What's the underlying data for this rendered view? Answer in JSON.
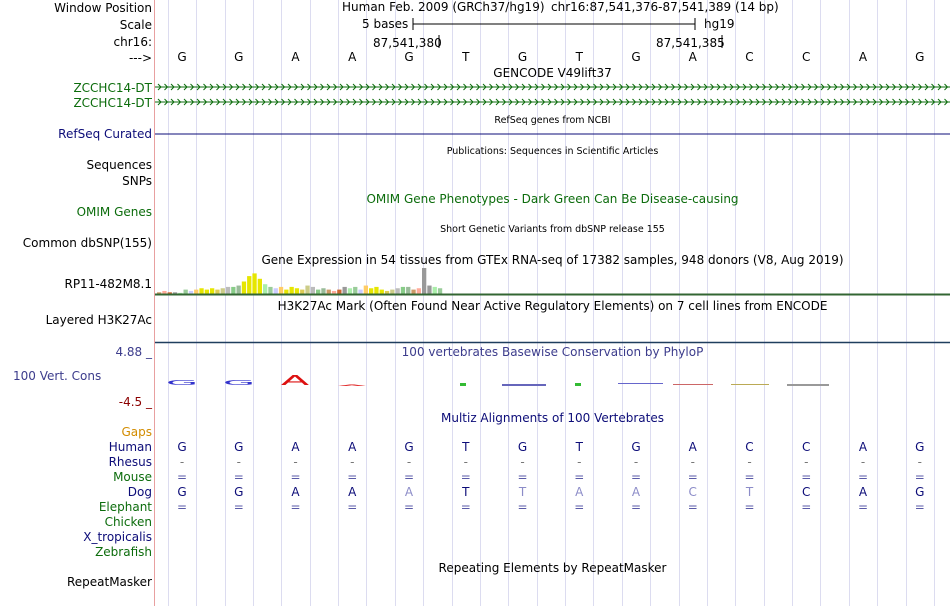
{
  "header": {
    "window_position_label": "Window Position",
    "scale_label": "Scale",
    "chr_label": "chr16:",
    "arrow_label": "--->",
    "assembly": "Human Feb. 2009 (GRCh37/hg19)",
    "position": "chr16:87,541,376-87,541,389 (14 bp)",
    "scale_text": "5 bases",
    "genome": "hg19",
    "coord_1": "87,541,380",
    "coord_2": "87,541,385"
  },
  "sequence": [
    "G",
    "G",
    "A",
    "A",
    "G",
    "T",
    "G",
    "T",
    "G",
    "A",
    "C",
    "C",
    "A",
    "G"
  ],
  "tracks": {
    "gencode_title": "GENCODE V49lift37",
    "gencode_genes": [
      "ZCCHC14-DT",
      "ZCCHC14-DT"
    ],
    "refseq_title": "RefSeq genes from NCBI",
    "refseq_label": "RefSeq Curated",
    "pub_title": "Publications: Sequences in Scientific Articles",
    "sequences_label": "Sequences",
    "snps_label": "SNPs",
    "omim_title": "OMIM Gene Phenotypes - Dark Green Can Be Disease-causing",
    "omim_label": "OMIM Genes",
    "dbsnp_title": "Short Genetic Variants from dbSNP release 155",
    "dbsnp_label": "Common dbSNP(155)",
    "gtex_title": "Gene Expression in 54 tissues from GTEx RNA-seq of 17382 samples, 948 donors (V8, Aug 2019)",
    "gtex_label": "RP11-482M8.1",
    "h3k27_title": "H3K27Ac Mark (Often Found Near Active Regulatory Elements) on 7 cell lines from ENCODE",
    "h3k27_label": "Layered H3K27Ac",
    "cons_title": "100 vertebrates Basewise Conservation by PhyloP",
    "cons_label": "100 Vert. Cons",
    "cons_max": "4.88 _",
    "cons_min": "-4.5 _",
    "multiz_title": "Multiz Alignments of 100 Vertebrates",
    "gaps_label": "Gaps",
    "repeat_title": "Repeating Elements by RepeatMasker",
    "repeat_label": "RepeatMasker"
  },
  "gtex_values": [
    0.1,
    0.15,
    0.1,
    0.1,
    0.08,
    0.2,
    0.15,
    0.2,
    0.25,
    0.2,
    0.25,
    0.2,
    0.25,
    0.3,
    0.3,
    0.35,
    0.5,
    0.7,
    0.8,
    0.6,
    0.4,
    0.3,
    0.25,
    0.3,
    0.2,
    0.3,
    0.25,
    0.2,
    0.35,
    0.3,
    0.2,
    0.25,
    0.2,
    0.15,
    0.2,
    0.3,
    0.25,
    0.3,
    0.2,
    0.35,
    0.25,
    0.3,
    0.2,
    0.15,
    0.2,
    0.25,
    0.3,
    0.3,
    0.2,
    0.25,
    1.0,
    0.35,
    0.3,
    0.25
  ],
  "colors": {
    "gencode": "#0c6c0c",
    "refseq": "#0c0c78",
    "cons": "#3c3c8c",
    "cons_max": "#3c3c8c",
    "cons_min": "#8b0000",
    "gaps": "#d28c00",
    "species_dark": "#0c0c78",
    "species_green": "#0c6c0c",
    "h3k27_line": "#336633",
    "gtex_yellow": "#e6e600"
  },
  "alignments": [
    {
      "species": "Human",
      "color": "#0c0c78",
      "bases": [
        "G",
        "G",
        "A",
        "A",
        "G",
        "T",
        "G",
        "T",
        "G",
        "A",
        "C",
        "C",
        "A",
        "G"
      ]
    },
    {
      "species": "Rhesus",
      "color": "#0c0c78",
      "bases": [
        "-",
        "-",
        "-",
        "-",
        "-",
        "-",
        "-",
        "-",
        "-",
        "-",
        "-",
        "-",
        "-",
        "-"
      ]
    },
    {
      "species": "Mouse",
      "color": "#0c6c0c",
      "bases": [
        "=",
        "=",
        "=",
        "=",
        "=",
        "=",
        "=",
        "=",
        "=",
        "=",
        "=",
        "=",
        "=",
        "="
      ]
    },
    {
      "species": "Dog",
      "color": "#0c0c78",
      "bases": [
        "G",
        "G",
        "A",
        "A",
        "A",
        "T",
        "T",
        "A",
        "A",
        "C",
        "T",
        "C",
        "A",
        "G"
      ]
    },
    {
      "species": "Elephant",
      "color": "#0c6c0c",
      "bases": [
        "=",
        "=",
        "=",
        "=",
        "=",
        "=",
        "=",
        "=",
        "=",
        "=",
        "=",
        "=",
        "=",
        "="
      ]
    },
    {
      "species": "Chicken",
      "color": "#0c6c0c",
      "bases": []
    },
    {
      "species": "X_tropicalis",
      "color": "#0c0c78",
      "bases": []
    },
    {
      "species": "Zebrafish",
      "color": "#0c6c0c",
      "bases": []
    }
  ],
  "dog_mismatch": [
    false,
    false,
    false,
    false,
    true,
    false,
    true,
    true,
    true,
    true,
    true,
    false,
    false,
    false
  ]
}
